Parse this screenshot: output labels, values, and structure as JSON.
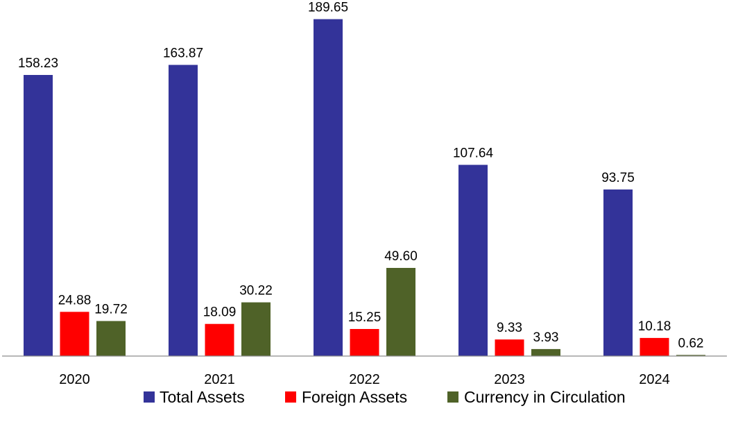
{
  "chart_data": {
    "type": "bar",
    "title": "",
    "xlabel": "",
    "ylabel": "",
    "categories": [
      "2020",
      "2021",
      "2022",
      "2023",
      "2024"
    ],
    "series": [
      {
        "name": "Total Assets",
        "color": "#333399",
        "values": [
          158.23,
          163.87,
          189.65,
          107.64,
          93.75
        ],
        "labels": [
          "158.23",
          "163.87",
          "189.65",
          "107.64",
          "93.75"
        ]
      },
      {
        "name": "Foreign Assets",
        "color": "#ff0000",
        "values": [
          24.88,
          18.09,
          15.25,
          9.33,
          10.18
        ],
        "labels": [
          "24.88",
          "18.09",
          "15.25",
          "9.33",
          "10.18"
        ]
      },
      {
        "name": "Currency in Circulation",
        "color": "#4f6228",
        "values": [
          19.72,
          30.22,
          49.6,
          3.93,
          0.62
        ],
        "labels": [
          "19.72",
          "30.22",
          "49.60",
          "3.93",
          "0.62"
        ]
      }
    ],
    "ylim": [
      0,
      200
    ],
    "grid": false,
    "legend_position": "bottom"
  }
}
